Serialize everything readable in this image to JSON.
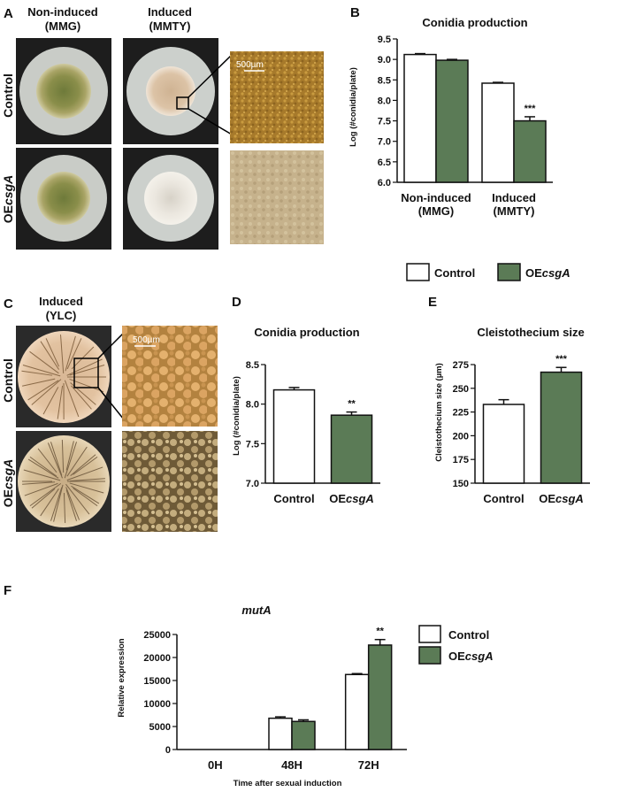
{
  "panels": {
    "A": {
      "label": "A",
      "col1": [
        "Non-induced",
        "(MMG)"
      ],
      "col2": [
        "Induced",
        "(MMTY)"
      ],
      "row1": "Control",
      "row2": [
        "OE",
        "csgA"
      ],
      "scale_bar": "500µm"
    },
    "B": {
      "label": "B"
    },
    "C": {
      "label": "C",
      "col1": [
        "Induced",
        "(YLC)"
      ],
      "row1": "Control",
      "row2": [
        "OE",
        "csgA"
      ],
      "scale_bar": "500µm"
    },
    "D": {
      "label": "D"
    },
    "E": {
      "label": "E"
    },
    "F": {
      "label": "F"
    }
  },
  "colors": {
    "control": "#ffffff",
    "oe": "#5b7b56",
    "outline": "#111111"
  },
  "chart_data": [
    {
      "id": "B",
      "type": "bar",
      "title": "Conidia production",
      "ylabel": "Log (#conidia/plate)",
      "ylim": [
        6.0,
        9.5
      ],
      "yticks": [
        "6.0",
        "6.5",
        "7.0",
        "7.5",
        "8.0",
        "8.5",
        "9.0",
        "9.5"
      ],
      "categories": [
        [
          "Non-induced",
          "(MMG)"
        ],
        [
          "Induced",
          "(MMTY)"
        ]
      ],
      "series": [
        {
          "name": "Control",
          "values": [
            9.12,
            8.42
          ],
          "errors": [
            0.0,
            0.02
          ]
        },
        {
          "name": "OEcsgA",
          "values": [
            8.98,
            7.5
          ],
          "errors": [
            0.02,
            0.1
          ]
        }
      ],
      "annotations": [
        {
          "series": 1,
          "category": 1,
          "text": "***"
        }
      ],
      "legend": {
        "position": "bottom",
        "items": [
          [
            "Control",
            ""
          ],
          [
            "OE",
            "csgA"
          ]
        ]
      }
    },
    {
      "id": "D",
      "type": "bar",
      "title": "Conidia production",
      "ylabel": "Log (#conidia/plate)",
      "ylim": [
        7.0,
        8.5
      ],
      "yticks": [
        "7.0",
        "7.5",
        "8.0",
        "8.5"
      ],
      "categories": [
        [
          "Control"
        ],
        [
          "OE",
          "csgA"
        ]
      ],
      "values": [
        8.18,
        7.86
      ],
      "errors": [
        0.03,
        0.04
      ],
      "annotations": [
        "",
        "**"
      ]
    },
    {
      "id": "E",
      "type": "bar",
      "title": "Cleistothecium size",
      "ylabel": "Cleistothecium size (µm)",
      "ylim": [
        150,
        275
      ],
      "yticks": [
        "150",
        "175",
        "200",
        "225",
        "250",
        "275"
      ],
      "categories": [
        [
          "Control"
        ],
        [
          "OE",
          "csgA"
        ]
      ],
      "values": [
        233,
        267
      ],
      "errors": [
        5,
        5
      ],
      "annotations": [
        "",
        "***"
      ]
    },
    {
      "id": "F",
      "type": "bar",
      "title": "mutA",
      "ylabel": "Relative expression",
      "xlabel": "Time after sexual induction",
      "ylim": [
        0,
        25000
      ],
      "yticks": [
        "0",
        "5000",
        "10000",
        "15000",
        "20000",
        "25000"
      ],
      "categories": [
        [
          "0H"
        ],
        [
          "48H"
        ],
        [
          "72H"
        ]
      ],
      "series": [
        {
          "name": "Control",
          "values": [
            0,
            6800,
            16300
          ],
          "errors": [
            0,
            300,
            200
          ]
        },
        {
          "name": "OEcsgA",
          "values": [
            0,
            6100,
            22700
          ],
          "errors": [
            0,
            350,
            1200
          ]
        }
      ],
      "annotations": [
        {
          "series": 1,
          "category": 2,
          "text": "**"
        }
      ],
      "legend": {
        "position": "top-right",
        "items": [
          [
            "Control",
            ""
          ],
          [
            "OE",
            "csgA"
          ]
        ]
      }
    }
  ]
}
